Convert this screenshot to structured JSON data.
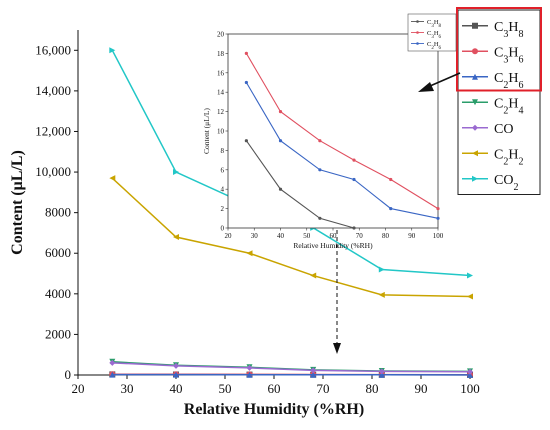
{
  "chart_data": [
    {
      "type": "line",
      "xlabel": "Relative Humidity (%RH)",
      "ylabel": "Content (μL/L)",
      "xlim": [
        20,
        100
      ],
      "ylim": [
        0,
        17000
      ],
      "xticks": [
        "20",
        "30",
        "40",
        "50",
        "60",
        "70",
        "80",
        "90",
        "100"
      ],
      "yticks": [
        "0",
        "2000",
        "4000",
        "6000",
        "8000",
        "10,000",
        "12,000",
        "14,000",
        "16,000"
      ],
      "x": [
        27,
        40,
        55,
        68,
        82,
        100
      ],
      "series": [
        {
          "name": "C3H8",
          "label_main": "C",
          "sub1": "3",
          "label_mid": "H",
          "sub2": "8",
          "color": "#555555",
          "marker": "square",
          "values": [
            30,
            25,
            20,
            15,
            10,
            8
          ]
        },
        {
          "name": "C3H6",
          "label_main": "C",
          "sub1": "3",
          "label_mid": "H",
          "sub2": "6",
          "color": "#e05060",
          "marker": "circle",
          "values": [
            40,
            35,
            30,
            25,
            20,
            15
          ]
        },
        {
          "name": "C2H6",
          "label_main": "C",
          "sub1": "2",
          "label_mid": "H",
          "sub2": "6",
          "color": "#3a66c4",
          "marker": "triangle",
          "values": [
            20,
            18,
            15,
            12,
            10,
            8
          ]
        },
        {
          "name": "C2H4",
          "label_main": "C",
          "sub1": "2",
          "label_mid": "H",
          "sub2": "4",
          "color": "#2a9d6a",
          "marker": "tri-down",
          "values": [
            650,
            480,
            380,
            250,
            200,
            180
          ]
        },
        {
          "name": "CO",
          "label_main": "CO",
          "sub1": "",
          "label_mid": "",
          "sub2": "",
          "color": "#9a6ad0",
          "marker": "diamond",
          "values": [
            600,
            450,
            350,
            230,
            180,
            160
          ]
        },
        {
          "name": "C2H2",
          "label_main": "C",
          "sub1": "2",
          "label_mid": "H",
          "sub2": "2",
          "color": "#c9a400",
          "marker": "tri-left",
          "values": [
            9700,
            6800,
            6000,
            4900,
            3950,
            3870
          ]
        },
        {
          "name": "CO2",
          "label_main": "CO",
          "sub1": "2",
          "label_mid": "",
          "sub2": "",
          "color": "#22c7c7",
          "marker": "tri-right",
          "values": [
            16000,
            10000,
            8350,
            7250,
            5200,
            4900
          ]
        }
      ]
    },
    {
      "type": "line",
      "xlabel": "Relative Humidity (%RH)",
      "ylabel": "Content (μL/L)",
      "xlim": [
        20,
        100
      ],
      "ylim": [
        0,
        20
      ],
      "xticks": [
        "20",
        "30",
        "40",
        "50",
        "60",
        "70",
        "80",
        "90",
        "100"
      ],
      "yticks": [
        "0",
        "2",
        "4",
        "6",
        "8",
        "10",
        "12",
        "14",
        "16",
        "18",
        "20"
      ],
      "x": [
        27,
        40,
        55,
        68,
        82,
        100
      ],
      "series": [
        {
          "name": "C3H8",
          "label_main": "C",
          "sub1": "3",
          "label_mid": "H",
          "sub2": "8",
          "color": "#555555",
          "x": [
            27,
            40,
            55,
            68
          ],
          "values": [
            9,
            4,
            1,
            0
          ]
        },
        {
          "name": "C3H6",
          "label_main": "C",
          "sub1": "3",
          "label_mid": "H",
          "sub2": "6",
          "color": "#e05060",
          "x": [
            27,
            40,
            55,
            68,
            82,
            100
          ],
          "values": [
            18,
            12,
            9,
            7,
            5,
            2
          ]
        },
        {
          "name": "C2H6",
          "label_main": "C",
          "sub1": "2",
          "label_mid": "H",
          "sub2": "6",
          "color": "#3a66c4",
          "x": [
            27,
            40,
            55,
            68,
            82,
            100
          ],
          "values": [
            15,
            9,
            6,
            5,
            2,
            1
          ]
        }
      ]
    }
  ]
}
